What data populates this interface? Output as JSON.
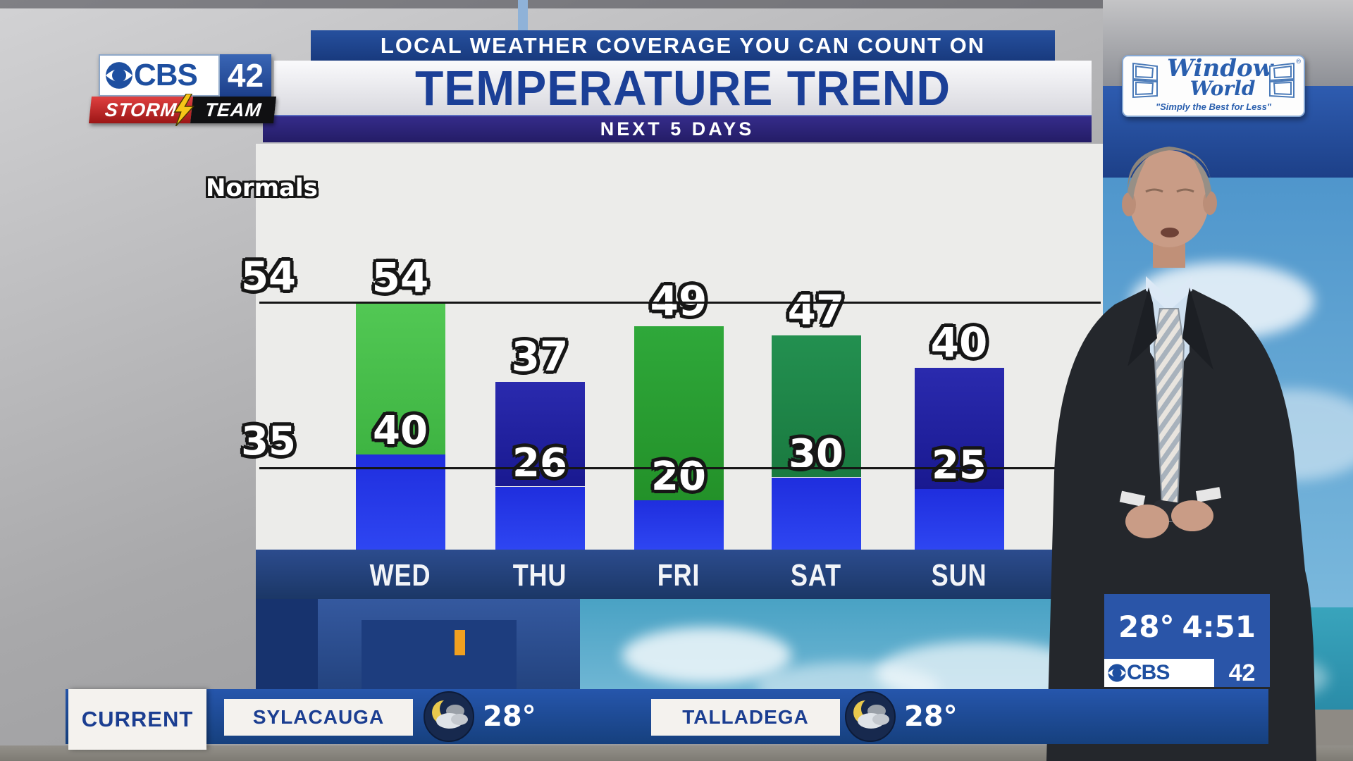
{
  "station": {
    "cbs": "CBS",
    "number": "42",
    "storm": "STORM",
    "team": "TEAM"
  },
  "header": {
    "tagline": "LOCAL WEATHER COVERAGE YOU CAN COUNT ON",
    "title": "TEMPERATURE TREND",
    "subtitle": "NEXT 5 DAYS"
  },
  "sponsor": {
    "line1": "Window",
    "line2": "World",
    "slogan": "\"Simply the Best for Less\"",
    "registered": "®"
  },
  "chart_data": {
    "type": "bar",
    "title": "TEMPERATURE TREND",
    "subtitle": "NEXT 5 DAYS",
    "normals_label": "Normals",
    "normal_high": 54,
    "normal_low": 35,
    "categories": [
      "WED",
      "THU",
      "FRI",
      "SAT",
      "SUN"
    ],
    "series": [
      {
        "name": "High",
        "values": [
          54,
          37,
          49,
          47,
          40
        ]
      },
      {
        "name": "Low",
        "values": [
          40,
          26,
          20,
          30,
          25
        ]
      }
    ],
    "bar_styles": [
      "green-bright",
      "navy",
      "green",
      "green-dark",
      "navy"
    ],
    "grid": "normal high/low reference lines only",
    "legend_position": "none"
  },
  "info_box": {
    "temp": "28°",
    "time": "4:51"
  },
  "lower_third": {
    "label": "CURRENT",
    "locations": [
      {
        "name": "SYLACAUGA",
        "temp": "28°",
        "icon": "moon-clouds"
      },
      {
        "name": "TALLADEGA",
        "temp": "28°",
        "icon": "moon-clouds"
      }
    ]
  },
  "colors": {
    "banner_blue": "#26509e",
    "subtitle_indigo": "#2a2173",
    "title_text_blue": "#1b3f97",
    "bar_green_bright": "#4cc44e",
    "bar_green": "#2aa233",
    "bar_green_dark": "#1f8b47",
    "bar_navy": "#1d1d9c",
    "bar_low_blue": "#2438e8",
    "day_strip_blue": "#24427c",
    "lower_third_blue": "#1d4a99",
    "info_box_blue": "#2a55a8",
    "storm_red": "#c52525",
    "moon_yellow": "#e9c94d"
  }
}
